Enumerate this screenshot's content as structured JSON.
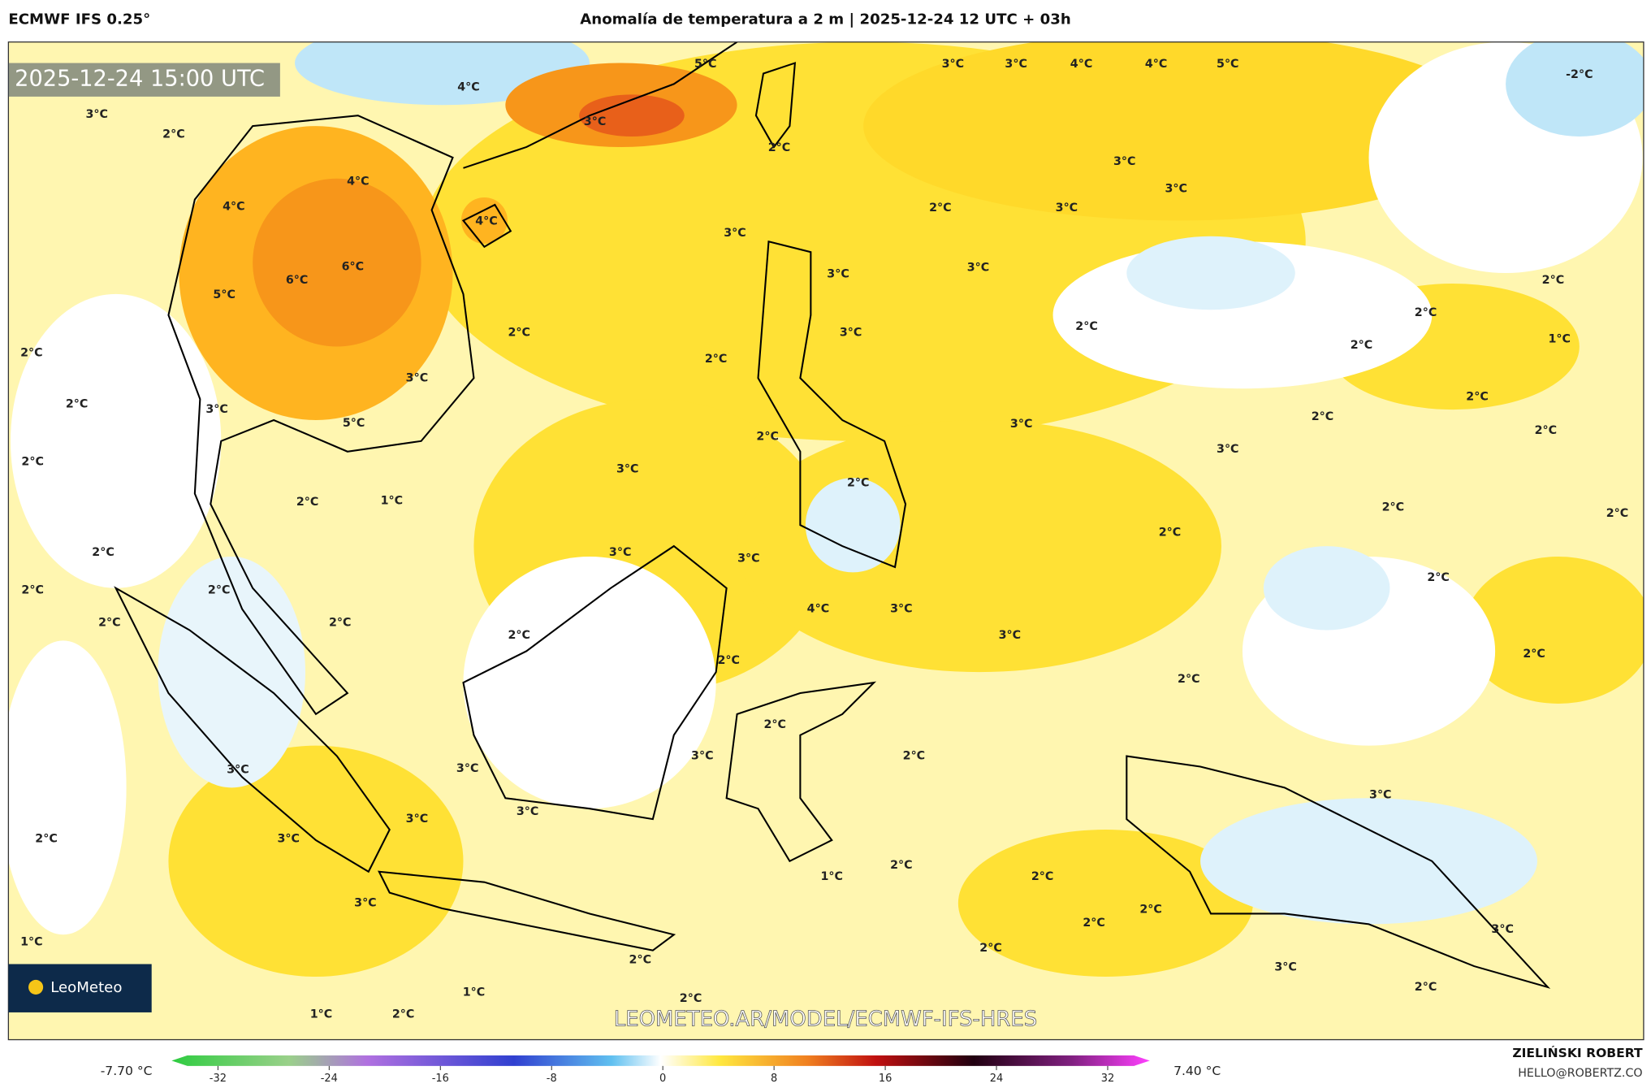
{
  "header_left": "ECMWF IFS 0.25°",
  "title": "Anomalía de temperatura a 2 m | 2025-12-24 12 UTC + 03h",
  "timestamp": "2025-12-24 15:00 UTC",
  "map_labels": [
    "5°C",
    "3°C",
    "3°C",
    "4°C",
    "4°C",
    "5°C",
    "-2°C",
    "4°C",
    "3°C",
    "2°C",
    "3°C",
    "2°C",
    "3°C",
    "3°C",
    "4°C",
    "4°C",
    "2°C",
    "3°C",
    "4°C",
    "3°C",
    "6°C",
    "6°C",
    "5°C",
    "3°C",
    "3°C",
    "2°C",
    "2°C",
    "2°C",
    "3°C",
    "2°C",
    "2°C",
    "2°C",
    "1°C",
    "2°C",
    "3°C",
    "2°C",
    "3°C",
    "2°C",
    "5°C",
    "2°C",
    "3°C",
    "2°C",
    "2°C",
    "3°C",
    "3°C",
    "2°C",
    "2°C",
    "1°C",
    "2°C",
    "2°C",
    "2°C",
    "2°C",
    "2°C",
    "3°C",
    "3°C",
    "2°C",
    "2°C",
    "2°C",
    "4°C",
    "3°C",
    "2°C",
    "2°C",
    "2°C",
    "3°C",
    "2°C",
    "2°C",
    "2°C",
    "2°C",
    "3°C",
    "2°C",
    "3°C",
    "3°C",
    "3°C",
    "3°C",
    "3°C",
    "2°C",
    "3°C",
    "2°C",
    "1°C",
    "2°C",
    "3°C",
    "2°C",
    "2°C",
    "3°C",
    "1°C",
    "2°C",
    "2°C",
    "3°C",
    "1°C",
    "2°C",
    "2°C",
    "1°C",
    "2°C"
  ],
  "watermark": "LEOMETEO.AR/MODEL/ECMWF-IFS-HRES",
  "logo": "LeoMeteo",
  "colorbar": {
    "ticks": [
      -32,
      -24,
      -16,
      -8,
      0,
      8,
      16,
      24,
      32
    ],
    "min_label": "-7.70 °C",
    "max_label": "7.40 °C"
  },
  "author": "ZIELIŃSKI ROBERT",
  "email": "HELLO@ROBERTZ.CO"
}
